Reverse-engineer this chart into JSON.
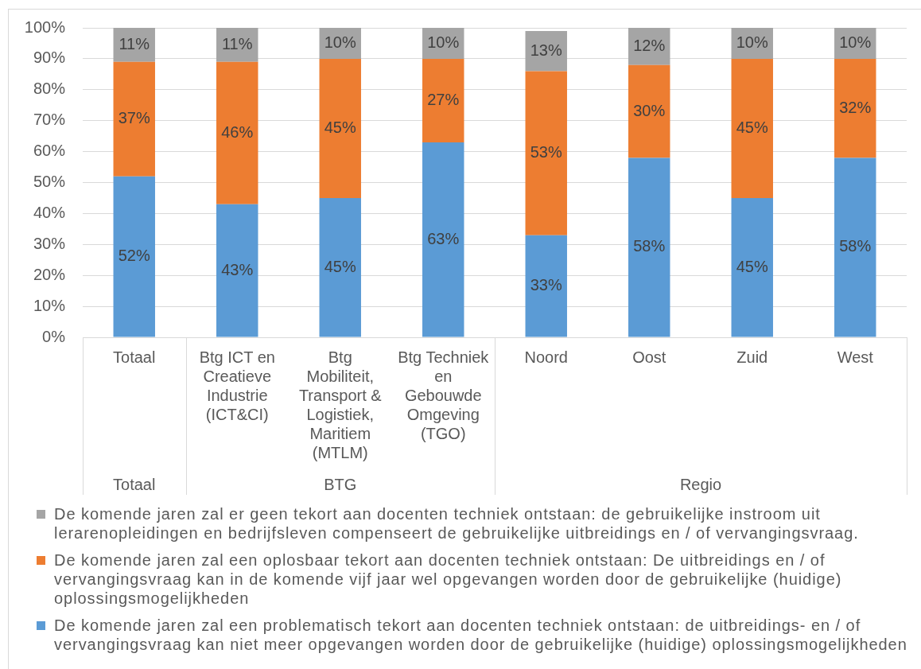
{
  "chart_data": {
    "type": "bar",
    "stacked": true,
    "categories": [
      "Totaal",
      "Btg ICT en Creatieve Industrie (ICT&CI)",
      "Btg Mobiliteit, Transport & Logistiek, Maritiem (MTLM)",
      "Btg Techniek en Gebouwde Omgeving (TGO)",
      "Noord",
      "Oost",
      "Zuid",
      "West"
    ],
    "series": [
      {
        "name": "De komende jaren zal een problematisch tekort aan docenten techniek ontstaan: de uitbreidings- en / of vervangingsvraag kan niet meer opgevangen worden door de gebruikelijke (huidige) oplossingsmogelijkheden",
        "color": "#5b9bd5",
        "values": [
          52,
          43,
          45,
          63,
          33,
          58,
          45,
          58
        ],
        "value_labels": [
          "52%",
          "43%",
          "45%",
          "63%",
          "33%",
          "58%",
          "45%",
          "58%"
        ]
      },
      {
        "name": "De komende jaren zal een oplosbaar tekort aan docenten techniek ontstaan: De uitbreidings en / of vervangingsvraag kan in de komende vijf jaar wel opgevangen worden door de gebruikelijke (huidige) oplossingsmogelijkheden",
        "color": "#ed7d31",
        "values": [
          37,
          46,
          45,
          27,
          53,
          30,
          45,
          32
        ],
        "value_labels": [
          "37%",
          "46%",
          "45%",
          "27%",
          "53%",
          "30%",
          "45%",
          "32%"
        ]
      },
      {
        "name": "De komende jaren zal er geen tekort aan docenten techniek ontstaan: de gebruikelijke instroom uit lerarenopleidingen en bedrijfsleven compenseert de gebruikelijke uitbreidings en / of vervangingsvraag.",
        "color": "#a5a5a5",
        "values": [
          11,
          11,
          10,
          10,
          13,
          12,
          10,
          10
        ],
        "value_labels": [
          "11%",
          "11%",
          "10%",
          "10%",
          "13%",
          "12%",
          "10%",
          "10%"
        ]
      }
    ],
    "ylim": [
      0,
      100
    ],
    "yticks": [
      {
        "value": 0,
        "label": "0%"
      },
      {
        "value": 10,
        "label": "10%"
      },
      {
        "value": 20,
        "label": "20%"
      },
      {
        "value": 30,
        "label": "30%"
      },
      {
        "value": 40,
        "label": "40%"
      },
      {
        "value": 50,
        "label": "50%"
      },
      {
        "value": 60,
        "label": "60%"
      },
      {
        "value": 70,
        "label": "70%"
      },
      {
        "value": 80,
        "label": "80%"
      },
      {
        "value": 90,
        "label": "90%"
      },
      {
        "value": 100,
        "label": "100%"
      }
    ],
    "grid": "y",
    "legend": "bottom",
    "annotations": [
      "Totaal",
      "BTG",
      "Regio"
    ]
  }
}
